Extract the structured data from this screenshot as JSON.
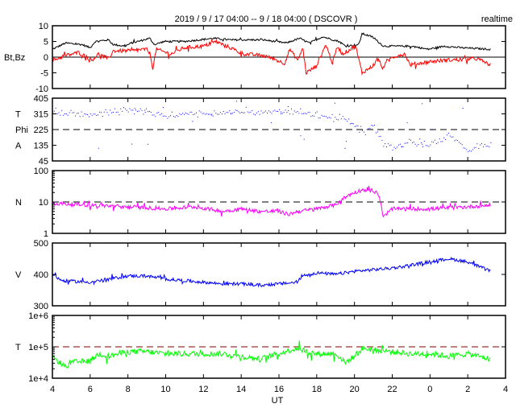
{
  "chart_data": {
    "type": "line",
    "title": "2019 / 9 / 17   04:00 --  9 / 18   04:00 ( DSCOVR )",
    "badge": "realtime",
    "xlabel": "UT",
    "x_ticks": [
      "4",
      "6",
      "8",
      "10",
      "12",
      "14",
      "16",
      "18",
      "20",
      "22",
      "0",
      "2",
      "4"
    ],
    "x_unit": "hours since 2019-09-17 04:00",
    "xlim": [
      0,
      24
    ],
    "panels": [
      {
        "label": "Bt,Bz",
        "labels": [
          "Bt,Bz"
        ],
        "scale": "linear",
        "ylim": [
          -10,
          10
        ],
        "yticks": [
          "10",
          "5",
          "0",
          "-5",
          "-10"
        ],
        "ytick_values": [
          10,
          5,
          0,
          -5,
          -10
        ],
        "refline": 0,
        "refstyle": "solid",
        "series": [
          {
            "name": "Bt",
            "color": "#000000",
            "style": "line",
            "noise": 0.3,
            "x": [
              0,
              0.7,
              1.57,
              2.0,
              2.27,
              2.97,
              3.23,
              3.84,
              4.19,
              4.54,
              5.15,
              5.41,
              5.93,
              6.98,
              8.55,
              9.42,
              11.17,
              12.39,
              13.09,
              13.61,
              14.31,
              15.18,
              15.53,
              16.23,
              16.4,
              16.93,
              17.54,
              19.02,
              19.9,
              20.77,
              21.64,
              23.2
            ],
            "y": [
              2.5,
              4.5,
              4,
              3,
              5,
              5.5,
              4,
              3.5,
              4.5,
              5,
              6,
              4,
              5,
              5,
              6,
              5.5,
              5.5,
              4.5,
              6,
              4.5,
              6.5,
              5,
              3.5,
              4,
              7.5,
              6.5,
              3.5,
              3.5,
              2.5,
              3.5,
              3,
              2.5
            ]
          },
          {
            "name": "Bz",
            "color": "#ff0000",
            "style": "line",
            "noise": 0.6,
            "x": [
              0,
              0.7,
              1.4,
              2.09,
              2.44,
              2.97,
              3.23,
              4.19,
              4.89,
              5.15,
              5.32,
              5.5,
              6.28,
              6.98,
              8.03,
              8.64,
              9.42,
              10.12,
              11.17,
              11.69,
              12.3,
              12.57,
              13.0,
              13.26,
              13.44,
              13.96,
              14.49,
              14.83,
              15.1,
              15.36,
              16.06,
              16.4,
              16.93,
              17.28,
              17.45,
              17.98,
              18.67,
              18.94,
              19.9,
              20.77,
              22.51,
              23.2
            ],
            "y": [
              -1,
              0.5,
              1.5,
              -1,
              1,
              -0.5,
              2,
              2,
              2.5,
              1.5,
              -3.5,
              2.5,
              1,
              3,
              3.5,
              5,
              3,
              1,
              0.5,
              -0.5,
              -2,
              2.5,
              -1,
              3,
              -5,
              -3,
              4,
              -2,
              3.5,
              1,
              3.5,
              -5,
              -3,
              -0.5,
              -3.5,
              0,
              1,
              -2.5,
              -1.5,
              -1,
              -0.5,
              -2.5
            ]
          }
        ]
      },
      {
        "label": "T Phi A",
        "labels": [
          "T",
          "Phi",
          "A"
        ],
        "scale": "linear",
        "ylim": [
          45,
          405
        ],
        "yticks": [
          "405",
          "315",
          "225",
          "135",
          "45"
        ],
        "ytick_values": [
          405,
          315,
          225,
          135,
          45
        ],
        "refline": 225,
        "refstyle": "dashed",
        "series": [
          {
            "name": "Phi",
            "color": "#0000ff",
            "style": "dots",
            "noise": 10,
            "x": [
              0,
              2,
              4,
              5.5,
              6,
              7,
              8,
              10,
              12,
              13,
              13.5,
              14,
              15,
              15.5,
              16,
              16.5,
              17,
              17.5,
              18,
              19,
              20,
              21,
              22,
              23.2
            ],
            "y": [
              330,
              310,
              340,
              320,
              300,
              320,
              315,
              330,
              330,
              330,
              320,
              310,
              300,
              290,
              250,
              210,
              250,
              150,
              120,
              160,
              140,
              190,
              110,
              140
            ]
          }
        ]
      },
      {
        "label": "N",
        "labels": [
          "N"
        ],
        "scale": "log",
        "ylim": [
          1,
          100
        ],
        "yticks": [
          "100",
          "10",
          "1"
        ],
        "ytick_values": [
          100,
          10,
          1
        ],
        "refline": 10,
        "refstyle": "dashed",
        "series": [
          {
            "name": "N",
            "color": "#ff00ff",
            "style": "line",
            "noise": 0.06,
            "x": [
              0,
              2,
              4,
              6,
              7.5,
              9,
              10,
              11,
              12,
              12.5,
              13,
              14,
              15,
              16,
              16.5,
              17.2,
              17.5,
              18,
              20,
              22,
              23.2
            ],
            "y": [
              9,
              8,
              7,
              6,
              7,
              5,
              6,
              5,
              5,
              4,
              5,
              6,
              8,
              20,
              25,
              20,
              3,
              6,
              6,
              7,
              8
            ]
          }
        ]
      },
      {
        "label": "V",
        "labels": [
          "V"
        ],
        "scale": "linear",
        "ylim": [
          300,
          500
        ],
        "yticks": [
          "500",
          "400",
          "300"
        ],
        "ytick_values": [
          500,
          400,
          300
        ],
        "refline": null,
        "refstyle": "none",
        "series": [
          {
            "name": "V",
            "color": "#0000ff",
            "style": "line",
            "noise": 5,
            "x": [
              0,
              0.5,
              2,
              3,
              4,
              5,
              6,
              7,
              8,
              9,
              10,
              11,
              12,
              13,
              13.2,
              14,
              15,
              16,
              17,
              18,
              19,
              20,
              20.5,
              21,
              22,
              23.2
            ],
            "y": [
              400,
              380,
              375,
              385,
              395,
              395,
              385,
              380,
              375,
              370,
              370,
              365,
              370,
              375,
              395,
              405,
              400,
              410,
              415,
              420,
              430,
              440,
              445,
              450,
              440,
              410
            ]
          }
        ]
      },
      {
        "label": "T",
        "labels": [
          "T"
        ],
        "scale": "log",
        "ylim": [
          10000,
          1000000
        ],
        "yticks": [
          "1e+6",
          "1e+5",
          "1e+4"
        ],
        "ytick_values": [
          1000000,
          100000,
          10000
        ],
        "refline": 100000,
        "refstyle": "dashed",
        "series": [
          {
            "name": "T",
            "color": "#00ff00",
            "style": "line",
            "noise": 0.09,
            "x": [
              0,
              0.7,
              1,
              2,
              2.5,
              3,
              4,
              5,
              6,
              7,
              8,
              9,
              10,
              11,
              12,
              13,
              13.5,
              14,
              15,
              15.5,
              16,
              16.5,
              17,
              18,
              19,
              20,
              21,
              22,
              23.2
            ],
            "y": [
              45000,
              22000,
              32000,
              35000,
              60000,
              50000,
              70000,
              70000,
              60000,
              60000,
              60000,
              60000,
              50000,
              40000,
              60000,
              90000,
              70000,
              60000,
              60000,
              30000,
              50000,
              90000,
              80000,
              70000,
              60000,
              60000,
              50000,
              60000,
              40000
            ]
          }
        ]
      }
    ]
  }
}
